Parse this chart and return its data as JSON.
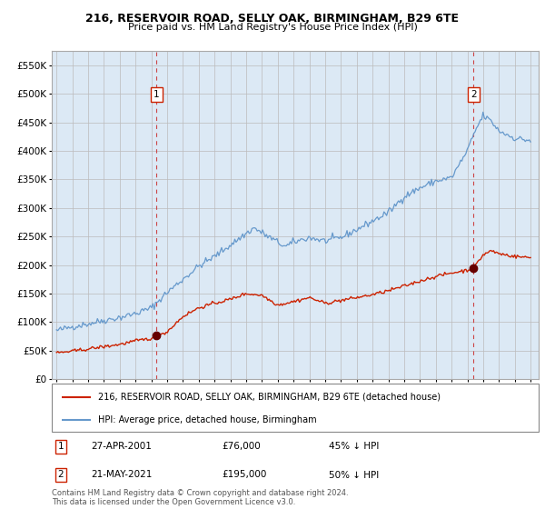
{
  "title": "216, RESERVOIR ROAD, SELLY OAK, BIRMINGHAM, B29 6TE",
  "subtitle": "Price paid vs. HM Land Registry's House Price Index (HPI)",
  "background_color": "#dce9f5",
  "plot_bg_color": "#dce9f5",
  "hpi_color": "#6699cc",
  "price_color": "#cc2200",
  "marker_color": "#660000",
  "grid_color": "#bbbbbb",
  "annotation_box_color": "#cc2200",
  "purchase1_date": 2001.32,
  "purchase1_price": 76000,
  "purchase2_date": 2021.38,
  "purchase2_price": 195000,
  "legend_entry1": "216, RESERVOIR ROAD, SELLY OAK, BIRMINGHAM, B29 6TE (detached house)",
  "legend_entry2": "HPI: Average price, detached house, Birmingham",
  "note1_date": "27-APR-2001",
  "note1_price": "£76,000",
  "note1_info": "45% ↓ HPI",
  "note2_date": "21-MAY-2021",
  "note2_price": "£195,000",
  "note2_info": "50% ↓ HPI",
  "footer": "Contains HM Land Registry data © Crown copyright and database right 2024.\nThis data is licensed under the Open Government Licence v3.0.",
  "ylim": [
    0,
    575000
  ],
  "yticks": [
    0,
    50000,
    100000,
    150000,
    200000,
    250000,
    300000,
    350000,
    400000,
    450000,
    500000,
    550000
  ],
  "xlim_start": 1994.7,
  "xlim_end": 2025.5
}
